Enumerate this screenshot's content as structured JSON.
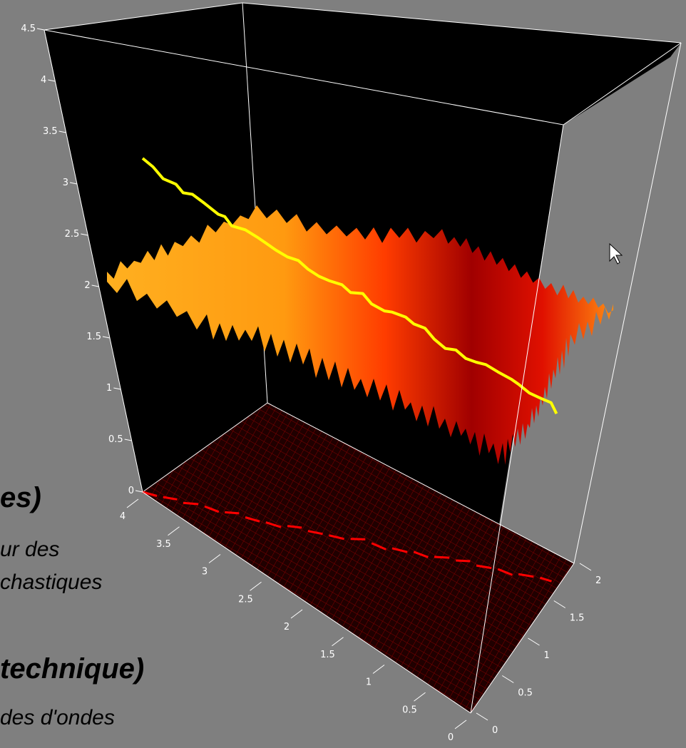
{
  "slide_fragments": {
    "heading_1": "es)",
    "line_1": "ur des",
    "line_2": "chastiques",
    "heading_2": "technique)",
    "line_3": "des d'ondes"
  },
  "colors": {
    "background": "#7f7f7f",
    "plot_box": "#000000",
    "box_edges": "#ffffff",
    "surface_high": "#ffb020",
    "surface_low": "#a00000",
    "path_3d": "#ffff00",
    "path_projection": "#ff0000",
    "floor_grid": "#8b0000"
  },
  "chart_data": {
    "type": "surface3d",
    "title": "",
    "xlabel": "",
    "ylabel": "",
    "zlabel": "",
    "z_axis": {
      "range": [
        0,
        4.5
      ],
      "ticks": [
        "0",
        "0.5",
        "1",
        "1.5",
        "2",
        "2.5",
        "3",
        "3.5",
        "4",
        "4.5"
      ]
    },
    "x_axis": {
      "range": [
        0,
        4
      ],
      "ticks": [
        "0",
        "0.5",
        "1",
        "1.5",
        "2",
        "2.5",
        "3",
        "3.5",
        "4"
      ]
    },
    "y_axis": {
      "range": [
        0,
        2
      ],
      "ticks": [
        "0",
        "0.5",
        "1",
        "1.5",
        "2"
      ]
    },
    "surface": {
      "description": "noisy random-field surface colored by height (heat colormap)",
      "z_range": [
        1.6,
        2.9
      ]
    },
    "path": {
      "points": [
        [
          4.0,
          0.0,
          3.25
        ],
        [
          3.8,
          0.08,
          3.1
        ],
        [
          3.6,
          0.15,
          3.02
        ],
        [
          3.4,
          0.25,
          2.95
        ],
        [
          3.2,
          0.32,
          2.88
        ],
        [
          3.0,
          0.4,
          2.8
        ],
        [
          2.8,
          0.48,
          2.72
        ],
        [
          2.6,
          0.58,
          2.62
        ],
        [
          2.4,
          0.66,
          2.55
        ],
        [
          2.2,
          0.75,
          2.48
        ],
        [
          2.0,
          0.85,
          2.4
        ],
        [
          1.8,
          0.94,
          2.33
        ],
        [
          1.6,
          1.02,
          2.3
        ],
        [
          1.4,
          1.12,
          2.22
        ],
        [
          1.2,
          1.2,
          2.12
        ],
        [
          1.0,
          1.3,
          2.05
        ],
        [
          0.8,
          1.38,
          1.98
        ],
        [
          0.6,
          1.48,
          1.92
        ],
        [
          0.4,
          1.56,
          1.85
        ],
        [
          0.2,
          1.66,
          1.75
        ],
        [
          0.05,
          1.74,
          1.62
        ]
      ]
    }
  }
}
